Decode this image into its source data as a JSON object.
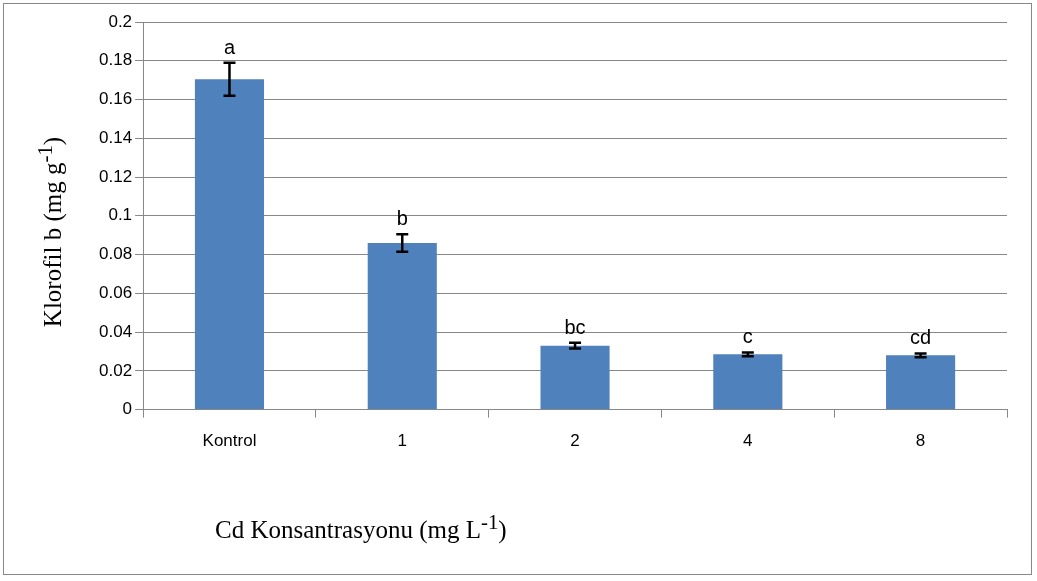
{
  "chart_data": {
    "type": "bar",
    "xlabel": "Cd Konsantrasyonu (mg L$^{-1}$)",
    "ylabel": "Klorofil b (mg g$^{-1}$)",
    "categories": [
      "Kontrol",
      "1",
      "2",
      "4",
      "8"
    ],
    "values": [
      0.1705,
      0.086,
      0.033,
      0.0285,
      0.028
    ],
    "errors": [
      0.0085,
      0.0045,
      0.0015,
      0.001,
      0.001
    ],
    "color": "#4f81bd",
    "ylim": [
      0,
      0.2
    ],
    "yticks": [
      0,
      0.02,
      0.04,
      0.06,
      0.08,
      0.1,
      0.12,
      0.14,
      0.16,
      0.18,
      0.2
    ],
    "grid": "y",
    "annotations": [
      "a",
      "b",
      "bc",
      "c",
      "cd"
    ]
  }
}
